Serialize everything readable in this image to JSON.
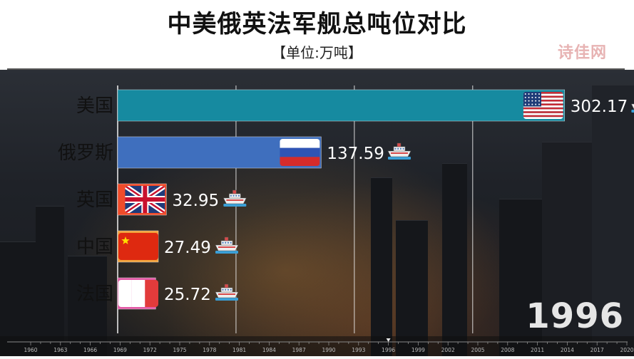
{
  "header": {
    "title": "中美俄英法军舰总吨位对比",
    "subtitle": "【单位:万吨】",
    "watermark": "诗佳网"
  },
  "year_display": "1996",
  "colors": {
    "usa_bar": "#168aa0",
    "russia_bar": "#3f6fbe",
    "tick_text": "#222222",
    "value_text": "#ffffff",
    "grid": "#d8d8d8"
  },
  "chart_data": {
    "type": "bar",
    "orientation": "horizontal",
    "title": "中美俄英法军舰总吨位对比",
    "subtitle": "【单位:万吨】",
    "categories": [
      "美国",
      "俄罗斯",
      "英国",
      "中国",
      "法国"
    ],
    "values": [
      302.17,
      137.59,
      32.95,
      27.49,
      25.72
    ],
    "value_labels": [
      "302.17",
      "137.59",
      "32.95",
      "27.49",
      "25.72"
    ],
    "icon_names": [
      "flag-usa-icon",
      "flag-russia-icon",
      "flag-uk-icon",
      "flag-china-icon",
      "flag-france-icon"
    ],
    "bar_colors": [
      "#168aa0",
      "#3f6fbe",
      "#f04c2a",
      "#f2a23a",
      "#e45aa6"
    ],
    "xlim": [
      0,
      310
    ],
    "grid": true,
    "year": "1996",
    "timeline": {
      "labels": [
        "1960",
        "1963",
        "1966",
        "1969",
        "1972",
        "1975",
        "1978",
        "1981",
        "1984",
        "1987",
        "1990",
        "1993",
        "1996",
        "1999",
        "2002",
        "2005",
        "2008",
        "2011",
        "2014",
        "2017",
        "2020"
      ],
      "current": "1996"
    }
  }
}
